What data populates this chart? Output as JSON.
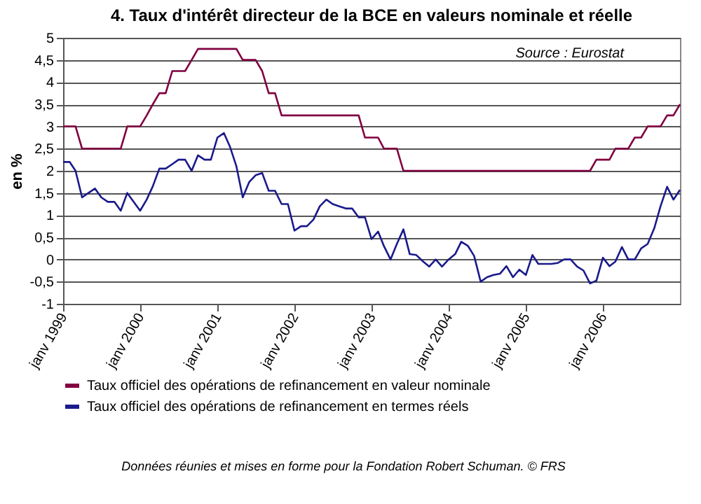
{
  "chart_data": {
    "type": "line",
    "title": "4.  Taux d'intérêt directeur de la BCE en valeurs nominale et réelle",
    "ylabel": "en %",
    "annotations": [
      "Source : Eurostat",
      "Données réunies et mises en forme pour la Fondation Robert Schuman. © FRS"
    ],
    "x": [
      "1999-01",
      "1999-02",
      "1999-03",
      "1999-04",
      "1999-05",
      "1999-06",
      "1999-07",
      "1999-08",
      "1999-09",
      "1999-10",
      "1999-11",
      "1999-12",
      "2000-01",
      "2000-02",
      "2000-03",
      "2000-04",
      "2000-05",
      "2000-06",
      "2000-07",
      "2000-08",
      "2000-09",
      "2000-10",
      "2000-11",
      "2000-12",
      "2001-01",
      "2001-02",
      "2001-03",
      "2001-04",
      "2001-05",
      "2001-06",
      "2001-07",
      "2001-08",
      "2001-09",
      "2001-10",
      "2001-11",
      "2001-12",
      "2002-01",
      "2002-02",
      "2002-03",
      "2002-04",
      "2002-05",
      "2002-06",
      "2002-07",
      "2002-08",
      "2002-09",
      "2002-10",
      "2002-11",
      "2002-12",
      "2003-01",
      "2003-02",
      "2003-03",
      "2003-04",
      "2003-05",
      "2003-06",
      "2003-07",
      "2003-08",
      "2003-09",
      "2003-10",
      "2003-11",
      "2003-12",
      "2004-01",
      "2004-02",
      "2004-03",
      "2004-04",
      "2004-05",
      "2004-06",
      "2004-07",
      "2004-08",
      "2004-09",
      "2004-10",
      "2004-11",
      "2004-12",
      "2005-01",
      "2005-02",
      "2005-03",
      "2005-04",
      "2005-05",
      "2005-06",
      "2005-07",
      "2005-08",
      "2005-09",
      "2005-10",
      "2005-11",
      "2005-12",
      "2006-01",
      "2006-02",
      "2006-03",
      "2006-04",
      "2006-05",
      "2006-06",
      "2006-07",
      "2006-08",
      "2006-09",
      "2006-10",
      "2006-11",
      "2006-12",
      "2007-01"
    ],
    "series": [
      {
        "name": "Taux officiel des opérations de refinancement en valeur nominale",
        "color": "#800040",
        "values": [
          3,
          3,
          3,
          2.5,
          2.5,
          2.5,
          2.5,
          2.5,
          2.5,
          2.5,
          3,
          3,
          3,
          3.25,
          3.5,
          3.75,
          3.75,
          4.25,
          4.25,
          4.25,
          4.5,
          4.75,
          4.75,
          4.75,
          4.75,
          4.75,
          4.75,
          4.75,
          4.5,
          4.5,
          4.5,
          4.25,
          3.75,
          3.75,
          3.25,
          3.25,
          3.25,
          3.25,
          3.25,
          3.25,
          3.25,
          3.25,
          3.25,
          3.25,
          3.25,
          3.25,
          3.25,
          2.75,
          2.75,
          2.75,
          2.5,
          2.5,
          2.5,
          2,
          2,
          2,
          2,
          2,
          2,
          2,
          2,
          2,
          2,
          2,
          2,
          2,
          2,
          2,
          2,
          2,
          2,
          2,
          2,
          2,
          2,
          2,
          2,
          2,
          2,
          2,
          2,
          2,
          2,
          2.25,
          2.25,
          2.25,
          2.5,
          2.5,
          2.5,
          2.75,
          2.75,
          3,
          3,
          3,
          3.25,
          3.25,
          3.5
        ]
      },
      {
        "name": "Taux officiel des opérations de refinancement en termes réels",
        "color": "#1a1a8c",
        "values": [
          2.2,
          2.2,
          2,
          1.4,
          1.5,
          1.6,
          1.4,
          1.3,
          1.3,
          1.1,
          1.5,
          1.3,
          1.1,
          1.35,
          1.65,
          2.05,
          2.05,
          2.15,
          2.25,
          2.25,
          2,
          2.35,
          2.25,
          2.25,
          2.75,
          2.85,
          2.55,
          2.1,
          1.4,
          1.75,
          1.9,
          1.95,
          1.55,
          1.55,
          1.25,
          1.25,
          0.65,
          0.75,
          0.75,
          0.9,
          1.2,
          1.35,
          1.25,
          1.2,
          1.15,
          1.15,
          0.95,
          0.95,
          0.46,
          0.63,
          0.3,
          0,
          0.35,
          0.68,
          0.12,
          0.1,
          -0.04,
          -0.16,
          0,
          -0.16,
          0,
          0.12,
          0.4,
          0.31,
          0.08,
          -0.5,
          -0.4,
          -0.35,
          -0.32,
          -0.15,
          -0.4,
          -0.23,
          -0.35,
          0.1,
          -0.1,
          -0.1,
          -0.1,
          -0.08,
          0,
          0,
          -0.16,
          -0.25,
          -0.54,
          -0.48,
          0.04,
          -0.15,
          -0.05,
          0.28,
          0,
          0,
          0.25,
          0.35,
          0.7,
          1.2,
          1.64,
          1.35,
          1.57
        ]
      }
    ],
    "xlim": [
      "1999-01",
      "2007-01"
    ],
    "xticks": [
      {
        "value": "1999-01",
        "label": "janv 1999"
      },
      {
        "value": "2000-01",
        "label": "janv 2000"
      },
      {
        "value": "2001-01",
        "label": "janv 2001"
      },
      {
        "value": "2002-01",
        "label": "janv 2002"
      },
      {
        "value": "2003-01",
        "label": "janv 2003"
      },
      {
        "value": "2004-01",
        "label": "janv 2004"
      },
      {
        "value": "2005-01",
        "label": "janv 2005"
      },
      {
        "value": "2006-01",
        "label": "janv 2006"
      }
    ],
    "ylim": [
      -1,
      5
    ],
    "yticks": [
      {
        "value": -1,
        "label": "-1"
      },
      {
        "value": -0.5,
        "label": "-0,5"
      },
      {
        "value": 0,
        "label": "0"
      },
      {
        "value": 0.5,
        "label": "0,5"
      },
      {
        "value": 1,
        "label": "1"
      },
      {
        "value": 1.5,
        "label": "1,5"
      },
      {
        "value": 2,
        "label": "2"
      },
      {
        "value": 2.5,
        "label": "2,5"
      },
      {
        "value": 3,
        "label": "3"
      },
      {
        "value": 3.5,
        "label": "3,5"
      },
      {
        "value": 4,
        "label": "4"
      },
      {
        "value": 4.5,
        "label": "4,5"
      },
      {
        "value": 5,
        "label": "5"
      }
    ],
    "grid": "y",
    "legend": "bottom",
    "marker": "none",
    "line_style": "solid"
  }
}
